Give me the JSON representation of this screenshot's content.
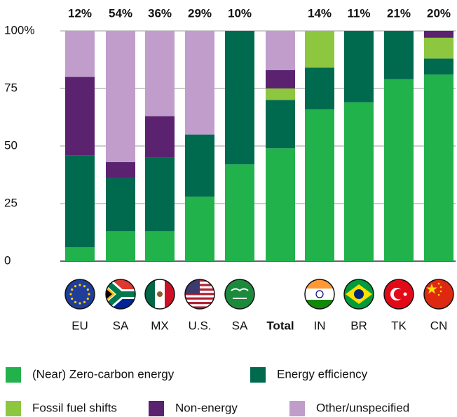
{
  "chart_data": {
    "type": "stacked_bar",
    "categories": [
      "EU",
      "SA",
      "MX",
      "U.S.",
      "SA",
      "Total",
      "IN",
      "BR",
      "TK",
      "CN"
    ],
    "annotations": [
      "12%",
      "54%",
      "36%",
      "29%",
      "10%",
      null,
      "14%",
      "11%",
      "21%",
      "20%"
    ],
    "series": [
      {
        "name": "(Near) Zero-carbon energy",
        "color": "#22b24c",
        "values": [
          6,
          13,
          13,
          28,
          42,
          49,
          66,
          69,
          79,
          81
        ]
      },
      {
        "name": "Energy efficiency",
        "color": "#006a4e",
        "values": [
          40,
          23,
          32,
          27,
          58,
          21,
          18,
          31,
          21,
          7
        ]
      },
      {
        "name": "Fossil fuel shifts",
        "color": "#8dc63f",
        "values": [
          0,
          0,
          0,
          0,
          0,
          5,
          16,
          0,
          0,
          9
        ]
      },
      {
        "name": "Non-energy",
        "color": "#5b2270",
        "values": [
          34,
          7,
          18,
          0,
          0,
          8,
          0,
          0,
          0,
          3
        ]
      },
      {
        "name": "Other/unspecified",
        "color": "#c09dcb",
        "values": [
          20,
          57,
          37,
          45,
          0,
          17,
          0,
          0,
          0,
          0
        ]
      }
    ],
    "ylim": [
      0,
      100
    ],
    "yticks": [
      0,
      25,
      50,
      75,
      {
        "value": 100,
        "label": "100%"
      }
    ],
    "grid": true
  }
}
